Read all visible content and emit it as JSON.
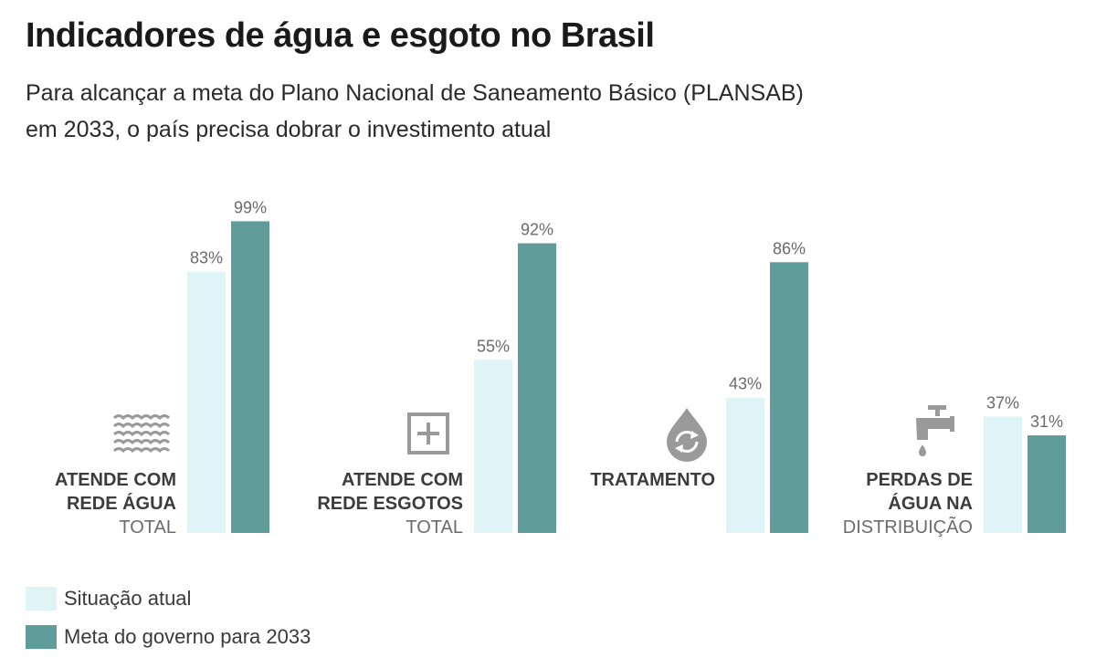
{
  "title": "Indicadores de água e esgoto no Brasil",
  "subtitle_line1": "Para alcançar a meta do Plano Nacional de Saneamento Básico (PLANSAB)",
  "subtitle_line2": "em 2033, o país precisa dobrar o investimento atual",
  "colors": {
    "current": "#dff4f6",
    "target": "#5f9c9a",
    "icon": "#9a9a9a"
  },
  "chart_data": {
    "type": "bar",
    "ylim": [
      0,
      100
    ],
    "categories": [
      {
        "label_bold": [
          "ATENDE COM",
          "REDE ÁGUA"
        ],
        "label_sub": "TOTAL",
        "icon": "waves-icon"
      },
      {
        "label_bold": [
          "ATENDE COM",
          "REDE ESGOTOS"
        ],
        "label_sub": "TOTAL",
        "icon": "sewer-grid-icon"
      },
      {
        "label_bold": [
          "TRATAMENTO"
        ],
        "label_sub": "",
        "icon": "water-drop-recycle-icon"
      },
      {
        "label_bold": [
          "PERDAS DE",
          "ÁGUA NA"
        ],
        "label_sub": "DISTRIBUIÇÃO",
        "icon": "faucet-icon"
      }
    ],
    "series": [
      {
        "name": "Situação atual",
        "values": [
          83,
          55,
          43,
          37
        ],
        "labels": [
          "83%",
          "55%",
          "43%",
          "37%"
        ]
      },
      {
        "name": "Meta do governo para 2033",
        "values": [
          99,
          92,
          86,
          31
        ],
        "labels": [
          "99%",
          "92%",
          "86%",
          "31%"
        ]
      }
    ]
  }
}
